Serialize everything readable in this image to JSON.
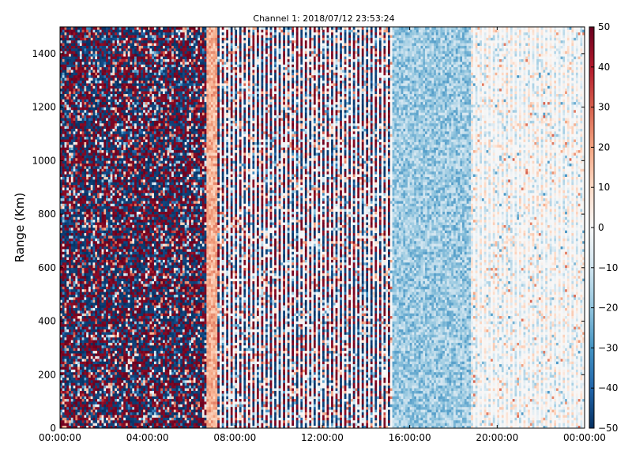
{
  "chart_data": {
    "type": "heatmap",
    "title": "Channel 1: 2018/07/12 23:53:24",
    "xlabel": "",
    "ylabel": "Range (Km)",
    "x_tick_labels": [
      "00:00:00",
      "04:00:00",
      "08:00:00",
      "12:00:00",
      "16:00:00",
      "20:00:00",
      "00:00:00"
    ],
    "x_range_hours": [
      0,
      24
    ],
    "y_ticks": [
      0,
      200,
      400,
      600,
      800,
      1000,
      1200,
      1400
    ],
    "y_range": [
      0,
      1500
    ],
    "colorbar": {
      "ticks": [
        50,
        40,
        30,
        20,
        10,
        0,
        -10,
        -20,
        -30,
        -40,
        -50
      ],
      "labels": [
        "50",
        "40",
        "30",
        "20",
        "10",
        "0",
        "−10",
        "−20",
        "−30",
        "−40",
        "−50"
      ],
      "range": [
        -50,
        50
      ],
      "colormap": "RdBu_r",
      "colors": [
        "#053061",
        "#2166ac",
        "#4393c3",
        "#92c5de",
        "#d1e5f0",
        "#f7f7f7",
        "#fddbc7",
        "#f4a582",
        "#d6604d",
        "#b2182b",
        "#67001f"
      ]
    },
    "value_range": [
      -50,
      50
    ],
    "grid": false,
    "regions": [
      {
        "from_hour": 0,
        "to_hour": 6.7,
        "pattern": "noise",
        "mean": 0,
        "spread": 50
      },
      {
        "from_hour": 6.7,
        "to_hour": 7.2,
        "pattern": "band",
        "mean": 18,
        "spread": 8
      },
      {
        "from_hour": 7.2,
        "to_hour": 15.2,
        "pattern": "striped-noise",
        "mean": -5,
        "spread": 40
      },
      {
        "from_hour": 15.2,
        "to_hour": 18.8,
        "pattern": "smooth",
        "mean": -18,
        "spread": 10
      },
      {
        "from_hour": 18.8,
        "to_hour": 24,
        "pattern": "striped-smooth",
        "mean": -2,
        "spread": 15
      }
    ]
  }
}
